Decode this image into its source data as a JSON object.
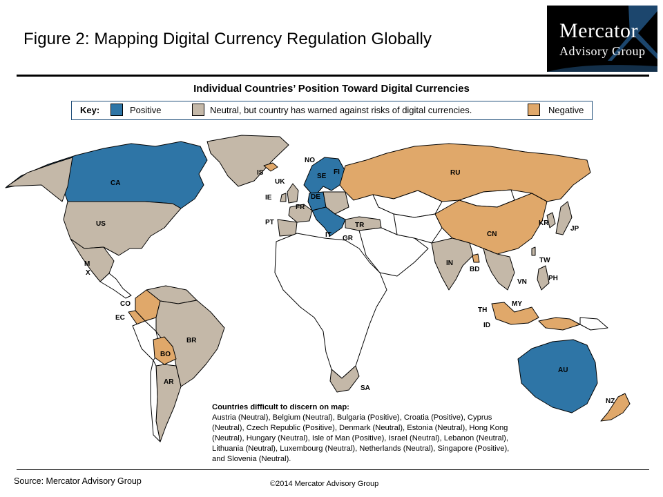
{
  "figure_title": "Figure 2: Mapping Digital Currency Regulation Globally",
  "logo": {
    "line1": "Mercator",
    "line2": "Advisory Group"
  },
  "subtitle": "Individual Countries’ Position Toward Digital Currencies",
  "key": {
    "label": "Key:",
    "items": [
      {
        "label": "Positive",
        "color": "#2e75a6"
      },
      {
        "label": "Neutral, but country has warned against risks of digital currencies.",
        "color": "#c4b8a8"
      },
      {
        "label": "Negative",
        "color": "#e0a86a"
      }
    ]
  },
  "colors": {
    "positive": "#2e75a6",
    "neutral": "#c4b8a8",
    "negative": "#e0a86a",
    "unclassified": "#ffffff",
    "border": "#000000"
  },
  "countries": {
    "CA": "CA",
    "US": "US",
    "MX": "M\nX",
    "CO": "CO",
    "EC": "EC",
    "BR": "BR",
    "BO": "BO",
    "AR": "AR",
    "IS": "IS",
    "NO": "NO",
    "FI": "FI",
    "SE": "SE",
    "UK": "UK",
    "IE": "IE",
    "DE": "DE",
    "FR": "FR",
    "PT": "PT",
    "IT": "IT",
    "GR": "GR",
    "TR": "TR",
    "RU": "RU",
    "CN": "CN",
    "KR": "KR",
    "JP": "JP",
    "IN": "IN",
    "BD": "BD",
    "TW": "TW",
    "VN": "VN",
    "PH": "PH",
    "TH": "TH",
    "MY": "MY",
    "ID": "ID",
    "AU": "AU",
    "NZ": "NZ",
    "SA": "SA"
  },
  "note": {
    "title": "Countries difficult to discern on map:",
    "text": "Austria (Neutral), Belgium (Neutral), Bulgaria (Positive), Croatia (Positive), Cyprus (Neutral), Czech Republic (Positive), Denmark (Neutral), Estonia (Neutral), Hong Kong (Neutral), Hungary (Neutral), Isle of Man (Positive), Israel (Neutral), Lebanon (Neutral), Lithuania (Neutral), Luxembourg (Neutral), Netherlands (Neutral), Singapore (Positive), and Slovenia (Neutral)."
  },
  "source": "Source: Mercator Advisory Group",
  "copyright": "©2014 Mercator Advisory Group"
}
